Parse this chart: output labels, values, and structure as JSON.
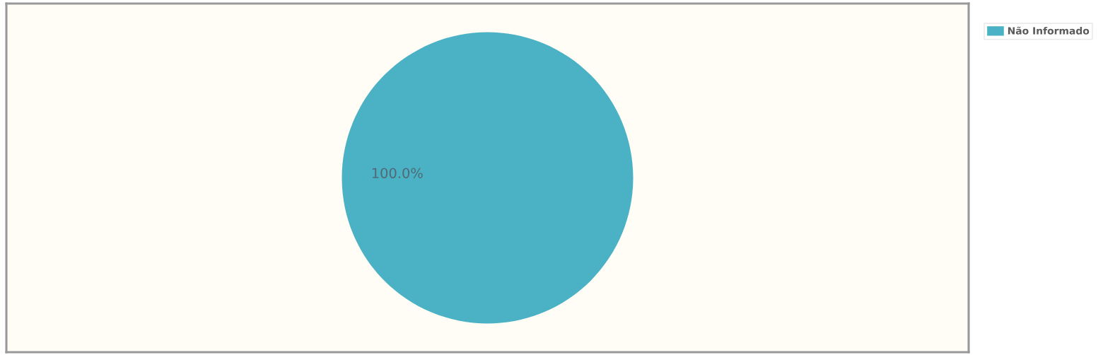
{
  "chart_data": {
    "type": "pie",
    "categories": [
      "Não Informado"
    ],
    "values": [
      100
    ],
    "colors": [
      "#4bb2c5"
    ],
    "value_labels": [
      "100.0%"
    ],
    "legend": "top right"
  }
}
